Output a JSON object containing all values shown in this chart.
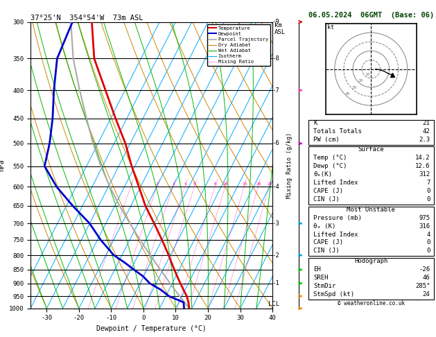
{
  "title_left": "37°25'N  354°54'W  73m ASL",
  "title_right": "06.05.2024  06GMT  (Base: 06)",
  "xlabel": "Dewpoint / Temperature (°C)",
  "ylabel_left": "hPa",
  "pressure_levels": [
    300,
    350,
    400,
    450,
    500,
    550,
    600,
    650,
    700,
    750,
    800,
    850,
    900,
    950,
    1000
  ],
  "pressure_ticks": [
    300,
    350,
    400,
    450,
    500,
    550,
    600,
    650,
    700,
    750,
    800,
    850,
    900,
    950,
    1000
  ],
  "temp_ticks": [
    -30,
    -20,
    -10,
    0,
    10,
    20,
    30,
    40
  ],
  "isotherm_temps": [
    -40,
    -35,
    -30,
    -25,
    -20,
    -15,
    -10,
    -5,
    0,
    5,
    10,
    15,
    20,
    25,
    30,
    35,
    40,
    45
  ],
  "isotherm_color": "#00aaff",
  "dry_adiabat_color": "#cc8800",
  "wet_adiabat_color": "#00bb00",
  "mixing_ratio_color": "#ff00aa",
  "temp_profile_color": "#dd0000",
  "dewp_profile_color": "#0000cc",
  "parcel_color": "#aaaaaa",
  "background_color": "#ffffff",
  "temp_profile_pressure": [
    1000,
    975,
    950,
    925,
    900,
    875,
    850,
    825,
    800,
    750,
    700,
    650,
    600,
    550,
    500,
    450,
    400,
    350,
    300
  ],
  "temp_profile_temp": [
    14.2,
    13.0,
    11.5,
    9.5,
    7.5,
    5.5,
    3.5,
    1.5,
    -0.5,
    -5.0,
    -10.0,
    -15.5,
    -20.5,
    -26.0,
    -31.5,
    -38.5,
    -46.0,
    -54.5,
    -61.0
  ],
  "dewp_profile_pressure": [
    1000,
    975,
    950,
    925,
    900,
    875,
    850,
    825,
    800,
    750,
    700,
    650,
    600,
    550,
    500,
    450,
    400,
    350,
    300
  ],
  "dewp_profile_temp": [
    12.6,
    11.5,
    6.0,
    2.5,
    -2.0,
    -5.0,
    -9.0,
    -13.0,
    -17.5,
    -24.0,
    -30.0,
    -38.0,
    -46.0,
    -53.0,
    -55.0,
    -58.0,
    -62.0,
    -66.0,
    -67.0
  ],
  "parcel_pressure": [
    1000,
    975,
    950,
    925,
    900,
    875,
    850,
    825,
    800,
    750,
    700,
    650,
    600,
    550,
    500,
    450,
    400,
    350,
    300
  ],
  "parcel_temp": [
    14.2,
    11.8,
    9.3,
    6.8,
    4.3,
    1.8,
    -0.8,
    -3.5,
    -6.2,
    -11.8,
    -17.5,
    -23.5,
    -29.5,
    -35.5,
    -41.5,
    -47.5,
    -54.0,
    -61.0,
    -67.5
  ],
  "mixing_ratio_values": [
    1,
    2,
    3,
    4,
    5,
    8,
    10,
    15,
    20,
    25
  ],
  "skew_factor": 45.0,
  "stats": {
    "K": 21,
    "Totals_Totals": 42,
    "PW_cm": 2.3,
    "Surface_Temp": 14.2,
    "Surface_Dewp": 12.6,
    "Surface_theta_e": 312,
    "Surface_LI": 7,
    "Surface_CAPE": 0,
    "Surface_CIN": 0,
    "MU_Pressure": 975,
    "MU_theta_e": 316,
    "MU_LI": 4,
    "MU_CAPE": 0,
    "MU_CIN": 0,
    "EH": -26,
    "SREH": 46,
    "StmDir": 285,
    "StmSpd_kt": 24
  },
  "hodo_winds": [
    {
      "spd": 5,
      "dir": 270
    },
    {
      "spd": 10,
      "dir": 275
    },
    {
      "spd": 15,
      "dir": 280
    },
    {
      "spd": 20,
      "dir": 285
    },
    {
      "spd": 24,
      "dir": 285
    }
  ],
  "barb_pressures": [
    300,
    400,
    500,
    700,
    800,
    850,
    900,
    950,
    1000
  ],
  "barb_colors": [
    "#dd0000",
    "#ff44aa",
    "#cc00cc",
    "#00aaff",
    "#00aaff",
    "#00cc00",
    "#00cc00",
    "#ff8800",
    "#ff8800"
  ],
  "km_pressures": [
    300,
    350,
    400,
    500,
    600,
    700,
    800,
    900
  ],
  "km_values": [
    9,
    8,
    7,
    6,
    4,
    3,
    2,
    1
  ]
}
